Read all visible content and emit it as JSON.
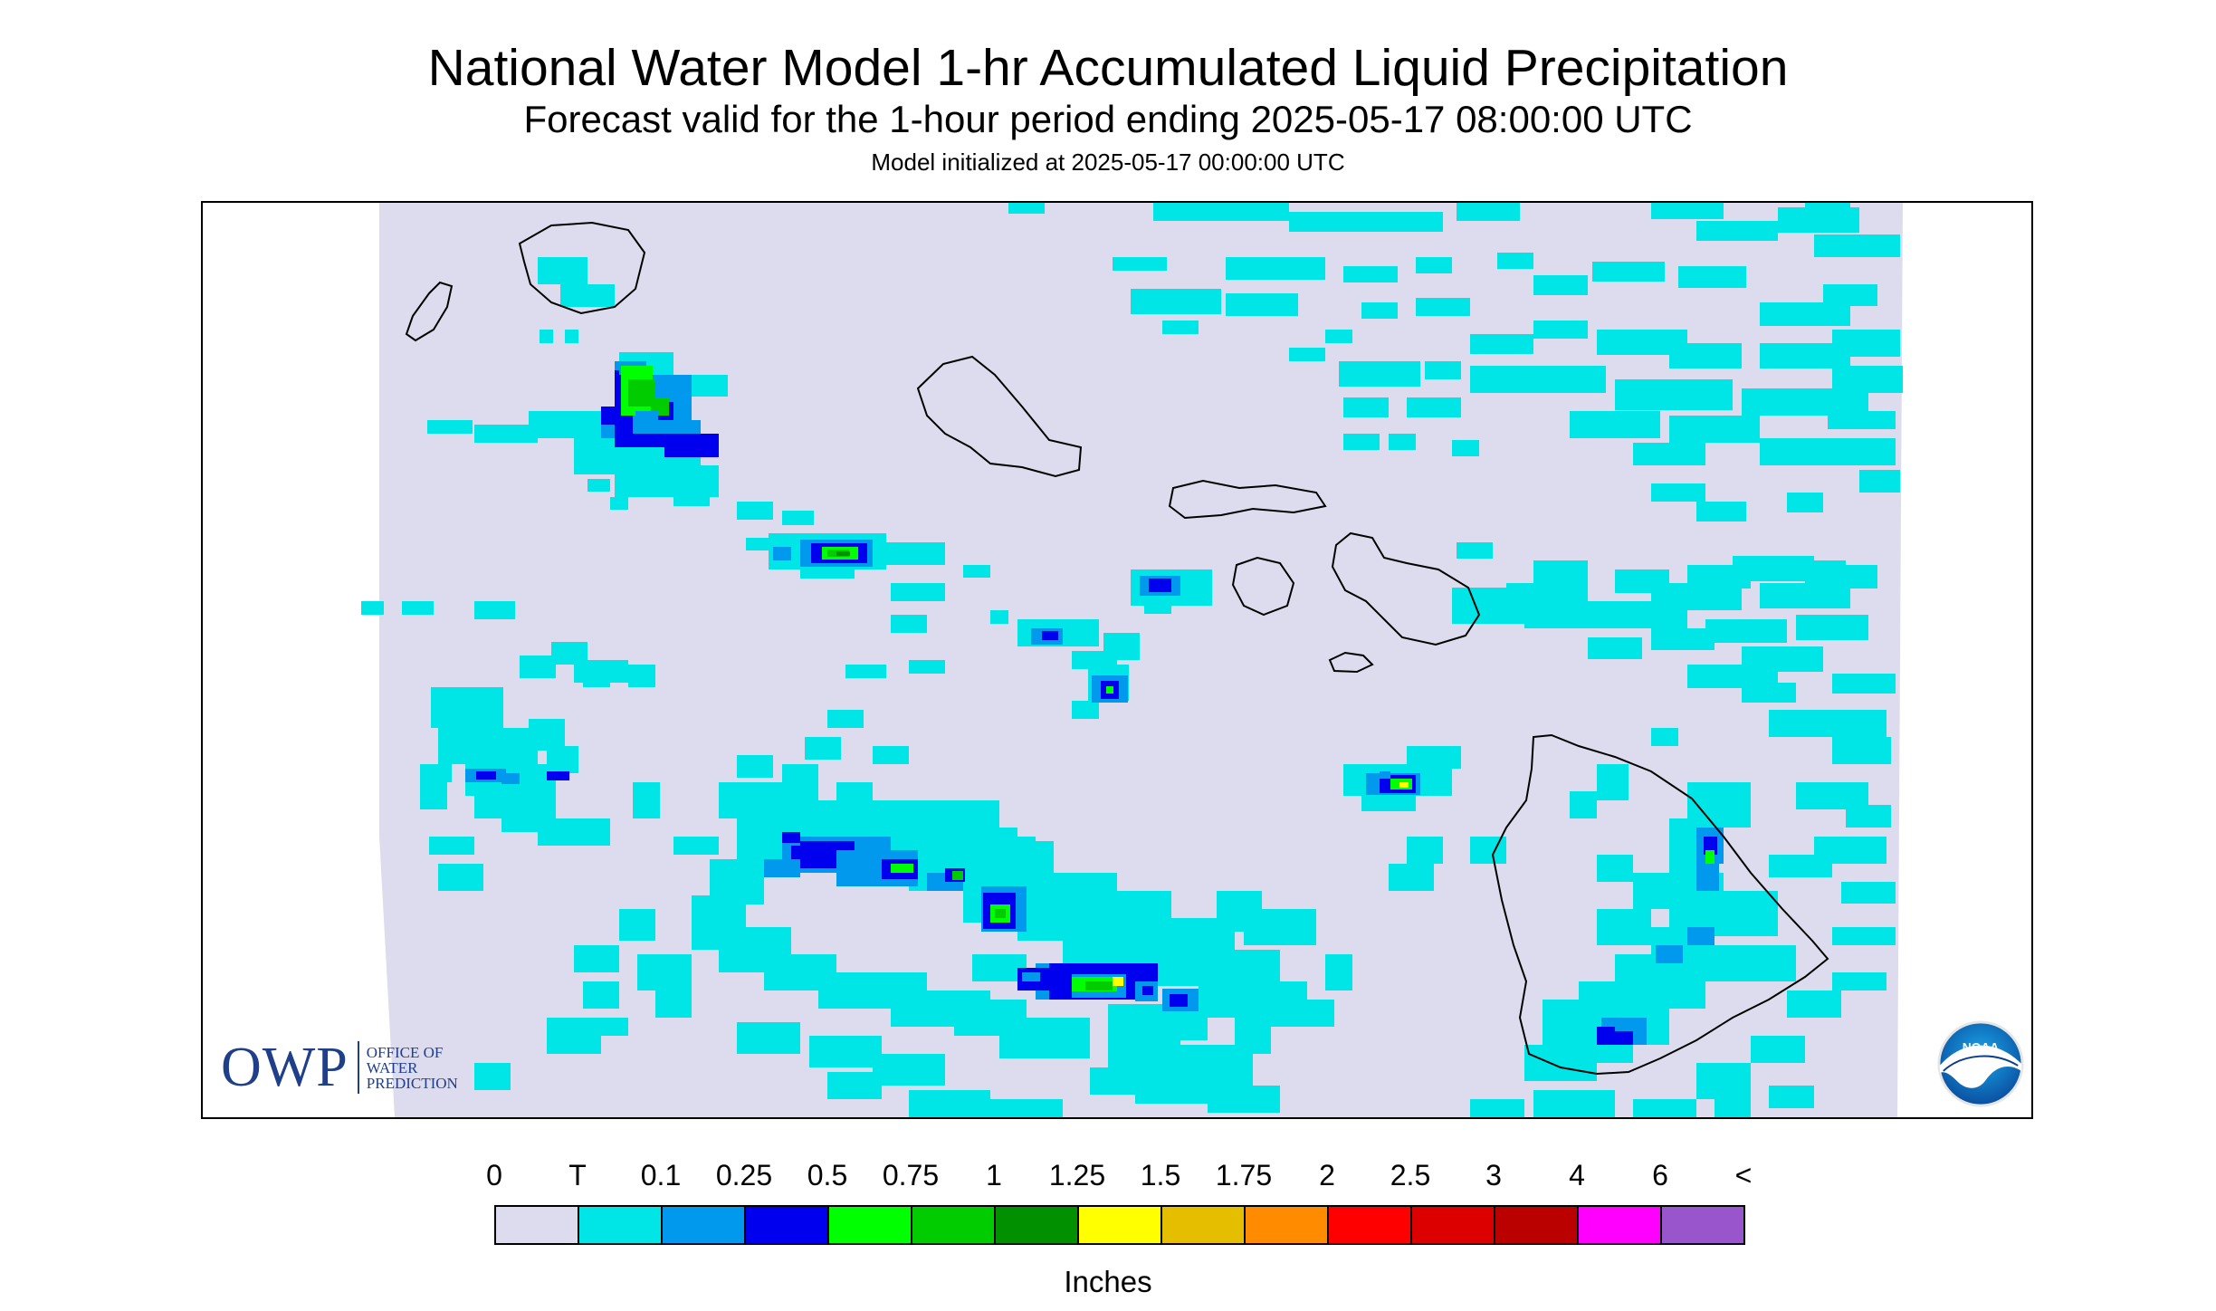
{
  "title": "National Water Model 1-hr Accumulated Liquid Precipitation",
  "subtitle": "Forecast valid for the 1-hour period ending 2025-05-17 08:00:00 UTC",
  "init_text": "Model initialized at 2025-05-17 00:00:00 UTC",
  "legend": {
    "labels": [
      "0",
      "T",
      "0.1",
      "0.25",
      "0.5",
      "0.75",
      "1",
      "1.25",
      "1.5",
      "1.75",
      "2",
      "2.5",
      "3",
      "4",
      "6",
      "<"
    ],
    "colors": [
      "#dcdcee",
      "#00e6e6",
      "#0099ee",
      "#0000ee",
      "#00ff00",
      "#00cc00",
      "#009000",
      "#ffff00",
      "#e6be00",
      "#ff8c00",
      "#ff0000",
      "#dd0000",
      "#bb0000",
      "#ff00ff",
      "#9955cc"
    ],
    "units": "Inches"
  },
  "logos": {
    "owp_abbrev": "OWP",
    "owp_name_lines": [
      "OFFICE OF",
      "WATER",
      "PREDICTION"
    ],
    "noaa": "NOAA"
  },
  "map": {
    "domain_color": "#dcdcee",
    "trace_color": "#00e6e6",
    "coast_color": "#000000"
  }
}
